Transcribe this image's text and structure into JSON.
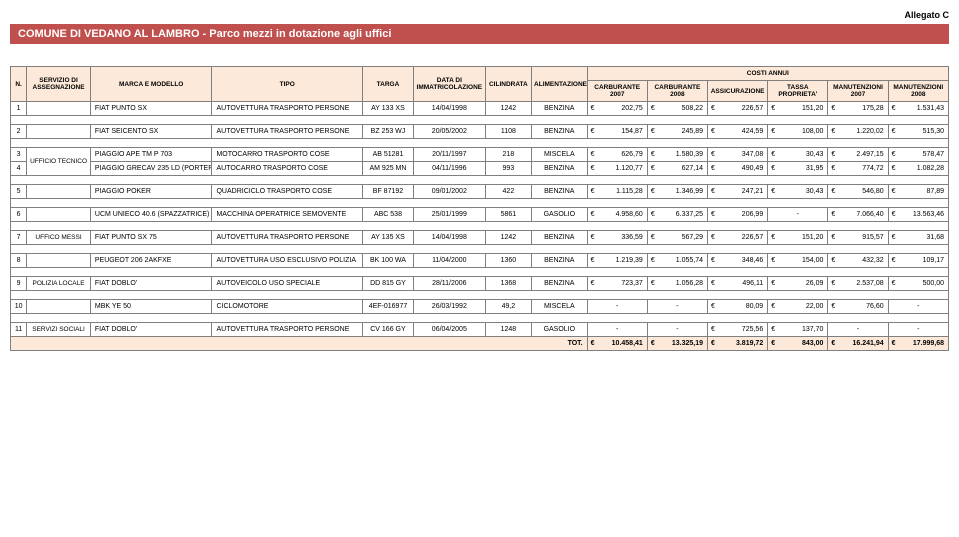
{
  "labels": {
    "allegato": "Allegato C",
    "title": "COMUNE DI VEDANO AL LAMBRO - Parco mezzi in dotazione agli uffici",
    "headers": {
      "n": "N.",
      "servizio": "SERVIZIO DI ASSEGNAZIONE",
      "marca": "MARCA E MODELLO",
      "tipo": "TIPO",
      "targa": "TARGA",
      "data": "DATA DI IMMATRICOLAZIONE",
      "cilindrata": "CILINDRATA",
      "alimentazione": "ALIMENTAZIONE",
      "costi": "COSTI ANNUI",
      "carb07": "CARBURANTE 2007",
      "carb08": "CARBURANTE 2008",
      "assic": "ASSICURAZIONE",
      "tassa": "TASSA PROPRIETA'",
      "manut07": "MANUTENZIONI 2007",
      "manut08": "MANUTENZIONI 2008",
      "tot": "TOT."
    }
  },
  "rows": [
    {
      "n": "1",
      "serv": "",
      "marca": "FIAT PUNTO SX",
      "tipo": "AUTOVETTURA TRASPORTO PERSONE",
      "targa": "AY 133 XS",
      "data": "14/04/1998",
      "cil": "1242",
      "alim": "BENZINA",
      "c07": "202,75",
      "c08": "508,22",
      "ass": "226,57",
      "tas": "151,20",
      "m07": "175,28",
      "m08": "1.531,43"
    },
    {
      "n": "2",
      "serv": "",
      "marca": "FIAT SEICENTO SX",
      "tipo": "AUTOVETTURA TRASPORTO PERSONE",
      "targa": "BZ 253 WJ",
      "data": "20/05/2002",
      "cil": "1108",
      "alim": "BENZINA",
      "c07": "154,87",
      "c08": "245,89",
      "ass": "424,59",
      "tas": "108,00",
      "m07": "1.220,02",
      "m08": "515,30"
    },
    {
      "n": "3",
      "serv": "UFFICIO TECNICO",
      "servspan": 2,
      "marca": "PIAGGIO APE TM P 703",
      "tipo": "MOTOCARRO TRASPORTO COSE",
      "targa": "AB 51281",
      "data": "20/11/1997",
      "cil": "218",
      "alim": "MISCELA",
      "c07": "626,79",
      "c08": "1.580,39",
      "ass": "347,08",
      "tas": "30,43",
      "m07": "2.497,15",
      "m08": "578,47"
    },
    {
      "n": "4",
      "marca": "PIAGGIO GRECAV 235 LD (PORTER)",
      "tipo": "AUTOCARRO TRASPORTO COSE",
      "targa": "AM 925 MN",
      "data": "04/11/1996",
      "cil": "993",
      "alim": "BENZINA",
      "c07": "1.120,77",
      "c08": "627,14",
      "ass": "490,49",
      "tas": "31,95",
      "m07": "774,72",
      "m08": "1.082,28"
    },
    {
      "n": "5",
      "serv": "",
      "marca": "PIAGGIO POKER",
      "tipo": "QUADRICICLO TRASPORTO COSE",
      "targa": "BF 87192",
      "data": "09/01/2002",
      "cil": "422",
      "alim": "BENZINA",
      "c07": "1.115,28",
      "c08": "1.346,99",
      "ass": "247,21",
      "tas": "30,43",
      "m07": "546,80",
      "m08": "87,89"
    },
    {
      "n": "6",
      "serv": "",
      "marca": "UCM UNIECO 40.6 (SPAZZATRICE)",
      "tipo": "MACCHINA OPERATRICE SEMOVENTE",
      "targa": "ABC 538",
      "data": "25/01/1999",
      "cil": "5861",
      "alim": "GASOLIO",
      "c07": "4.958,60",
      "c08": "6.337,25",
      "ass": "206,99",
      "tas": "-",
      "m07": "7.066,40",
      "m08": "13.563,46"
    },
    {
      "n": "7",
      "serv": "UFFICO MESSI",
      "marca": "FIAT PUNTO SX 75",
      "tipo": "AUTOVETTURA TRASPORTO PERSONE",
      "targa": "AY 135 XS",
      "data": "14/04/1998",
      "cil": "1242",
      "alim": "BENZINA",
      "c07": "336,59",
      "c08": "567,29",
      "ass": "226,57",
      "tas": "151,20",
      "m07": "915,57",
      "m08": "31,68"
    },
    {
      "n": "8",
      "serv": "",
      "marca": "PEUGEOT 206 2AKFXE",
      "tipo": "AUTOVETTURA USO ESCLUSIVO POLIZIA",
      "targa": "BK 100 WA",
      "data": "11/04/2000",
      "cil": "1360",
      "alim": "BENZINA",
      "c07": "1.219,39",
      "c08": "1.055,74",
      "ass": "348,46",
      "tas": "154,00",
      "m07": "432,32",
      "m08": "109,17"
    },
    {
      "n": "9",
      "serv": "POLIZIA LOCALE",
      "marca": "FIAT DOBLO'",
      "tipo": "AUTOVEICOLO USO SPECIALE",
      "targa": "DD 815 GY",
      "data": "28/11/2006",
      "cil": "1368",
      "alim": "BENZINA",
      "c07": "723,37",
      "c08": "1.056,28",
      "ass": "496,11",
      "tas": "26,09",
      "m07": "2.537,08",
      "m08": "500,00"
    },
    {
      "n": "10",
      "serv": "",
      "marca": "MBK YE 50",
      "tipo": "CICLOMOTORE",
      "targa": "4EF-016977",
      "data": "26/03/1992",
      "cil": "49,2",
      "alim": "MISCELA",
      "c07": "-",
      "c08": "-",
      "ass": "80,09",
      "tas": "22,00",
      "m07": "76,60",
      "m08": "-"
    },
    {
      "n": "11",
      "serv": "SERVIZI SOCIALI",
      "marca": "FIAT DOBLO'",
      "tipo": "AUTOVETTURA TRASPORTO PERSONE",
      "targa": "CV 166 GY",
      "data": "06/04/2005",
      "cil": "1248",
      "alim": "GASOLIO",
      "c07": "-",
      "c08": "-",
      "ass": "725,56",
      "tas": "137,70",
      "m07": "-",
      "m08": "-"
    }
  ],
  "totals": {
    "c07": "10.458,41",
    "c08": "13.325,19",
    "ass": "3.819,72",
    "tas": "843,00",
    "m07": "16.241,94",
    "m08": "17.999,68"
  }
}
